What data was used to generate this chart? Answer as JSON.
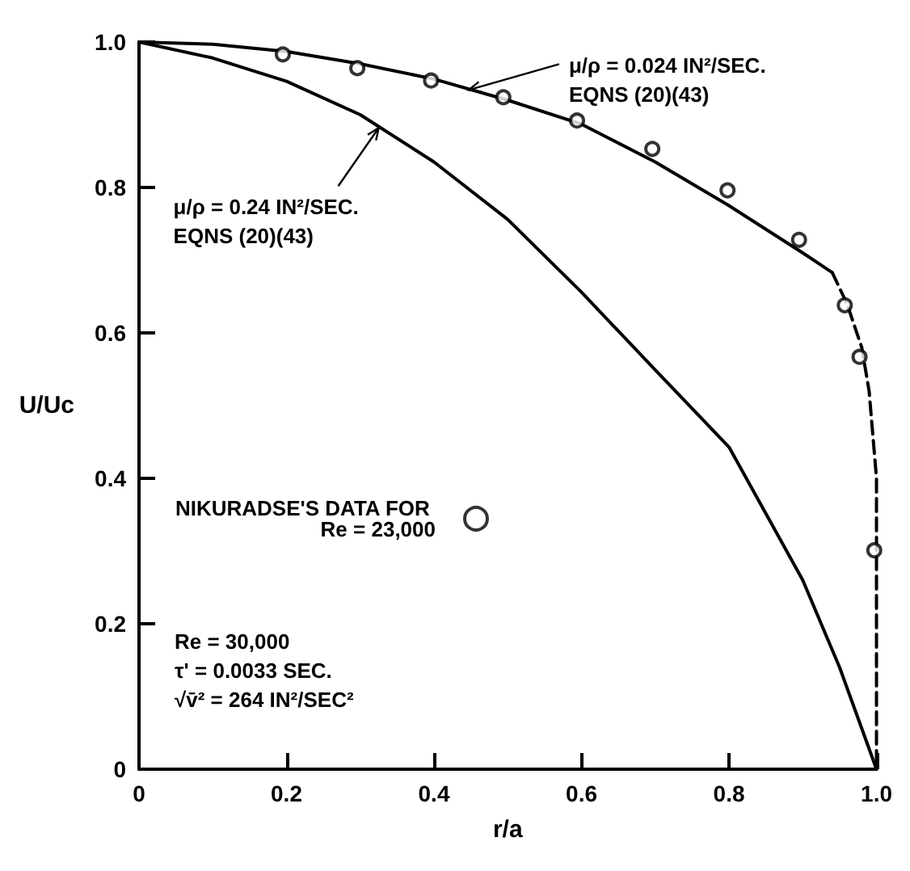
{
  "chart_data": {
    "type": "line",
    "xlabel": "r/a",
    "ylabel": "U/Uc",
    "xlim": [
      0,
      1
    ],
    "ylim": [
      0,
      1
    ],
    "xticks": [
      0,
      0.2,
      0.4,
      0.6,
      0.8,
      {
        "value": 1,
        "label": "1.0"
      }
    ],
    "yticks": [
      0,
      0.2,
      0.4,
      0.6,
      0.8,
      {
        "value": 1,
        "label": "1.0"
      }
    ],
    "grid": false,
    "legend": "left",
    "series": [
      {
        "color": "#000000",
        "marker": "none",
        "line_style": "solid",
        "x": [
          0,
          0.1,
          0.2,
          0.3,
          0.4,
          0.5,
          0.6,
          0.7,
          0.8,
          0.9,
          0.94
        ],
        "values": [
          1,
          0.997,
          0.987,
          0.97,
          0.949,
          0.92,
          0.887,
          0.835,
          0.775,
          0.71,
          0.683
        ]
      },
      {
        "color": "#000000",
        "marker": "none",
        "line_style": "dashed",
        "x": [
          0.94,
          0.96,
          0.98,
          0.99,
          1,
          1
        ],
        "values": [
          0.683,
          0.64,
          0.58,
          0.52,
          0.4,
          0
        ]
      },
      {
        "color": "#000000",
        "marker": "none",
        "line_style": "solid",
        "x": [
          0,
          0.1,
          0.2,
          0.3,
          0.4,
          0.5,
          0.6,
          0.7,
          0.8,
          0.9,
          0.95,
          1
        ],
        "values": [
          1,
          0.978,
          0.946,
          0.9,
          0.835,
          0.756,
          0.656,
          0.549,
          0.443,
          0.26,
          0.14,
          0
        ]
      },
      {
        "type": "scatter",
        "name": "NIKURADSE'S DATA FOR Re = 23,000",
        "color": "#000000",
        "marker": "circle",
        "x": [
          0.195,
          0.296,
          0.396,
          0.494,
          0.594,
          0.696,
          0.798,
          0.895,
          0.957,
          0.977,
          0.997
        ],
        "values": [
          0.983,
          0.964,
          0.947,
          0.924,
          0.892,
          0.853,
          0.796,
          0.728,
          0.638,
          0.567,
          0.301
        ]
      }
    ],
    "annotations": [
      {
        "text": "μ/ρ = 0.024 IN²/SEC.\nEQNS (20)(43)",
        "x": 0.447,
        "y": 0.934
      },
      {
        "text": "μ/ρ = 0.24 IN²/SEC.\nEQNS (20)(43)",
        "x": 0.325,
        "y": 0.882
      },
      "Re = 30,000\nτ' = 0.0033 SEC.\n√v̄² = 264 IN²/SEC²"
    ]
  }
}
